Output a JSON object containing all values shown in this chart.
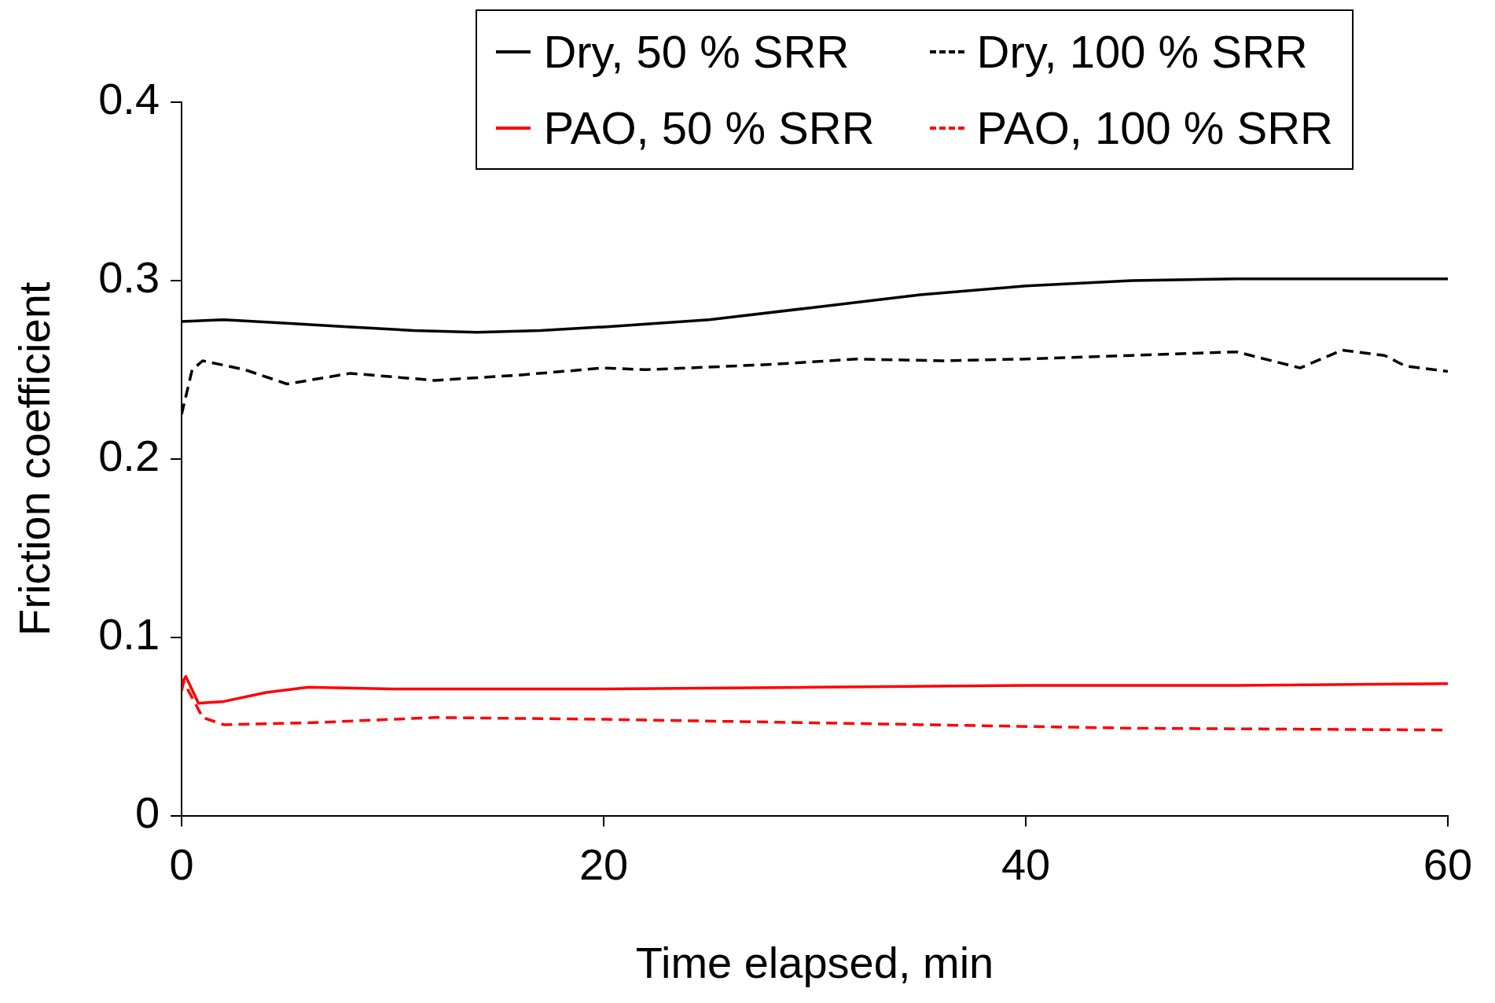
{
  "chart_data": {
    "type": "line",
    "xlabel": "Time elapsed, min",
    "ylabel": "Friction coefficient",
    "xlim": [
      0,
      60
    ],
    "ylim": [
      0,
      0.4
    ],
    "xticks": [
      0,
      20,
      40,
      60
    ],
    "yticks": [
      0,
      0.1,
      0.2,
      0.3,
      0.4
    ],
    "legend": "top right",
    "marker": "none",
    "series": [
      {
        "name": "Dry, 50 % SRR",
        "color": "#000000",
        "line_style": "solid",
        "x": [
          0,
          2,
          5,
          8,
          11,
          14,
          17,
          20,
          25,
          30,
          35,
          40,
          45,
          50,
          55,
          60
        ],
        "values": [
          0.277,
          0.278,
          0.276,
          0.274,
          0.272,
          0.271,
          0.272,
          0.274,
          0.278,
          0.285,
          0.292,
          0.297,
          0.3,
          0.301,
          0.301,
          0.301
        ]
      },
      {
        "name": "Dry, 100 % SRR",
        "color": "#000000",
        "line_style": "dashed",
        "x": [
          0,
          0.5,
          1,
          3,
          5,
          8,
          12,
          16,
          20,
          22,
          28,
          32,
          36,
          40,
          45,
          50,
          53,
          55,
          57,
          58,
          60
        ],
        "values": [
          0.225,
          0.25,
          0.255,
          0.25,
          0.242,
          0.248,
          0.244,
          0.247,
          0.251,
          0.25,
          0.253,
          0.256,
          0.255,
          0.256,
          0.258,
          0.26,
          0.251,
          0.261,
          0.258,
          0.252,
          0.249
        ]
      },
      {
        "name": "PAO, 50 % SRR",
        "color": "#ff0000",
        "line_style": "solid",
        "x": [
          0,
          0.2,
          0.8,
          2,
          4,
          6,
          10,
          20,
          30,
          40,
          50,
          60
        ],
        "values": [
          0.074,
          0.078,
          0.063,
          0.064,
          0.069,
          0.072,
          0.071,
          0.071,
          0.072,
          0.073,
          0.073,
          0.074
        ]
      },
      {
        "name": "PAO, 100 % SRR",
        "color": "#ff0000",
        "line_style": "dashed",
        "x": [
          0,
          0.1,
          1,
          2,
          6,
          12,
          20,
          35,
          45,
          60
        ],
        "values": [
          0.07,
          0.075,
          0.055,
          0.051,
          0.052,
          0.055,
          0.054,
          0.051,
          0.049,
          0.048
        ]
      }
    ]
  }
}
